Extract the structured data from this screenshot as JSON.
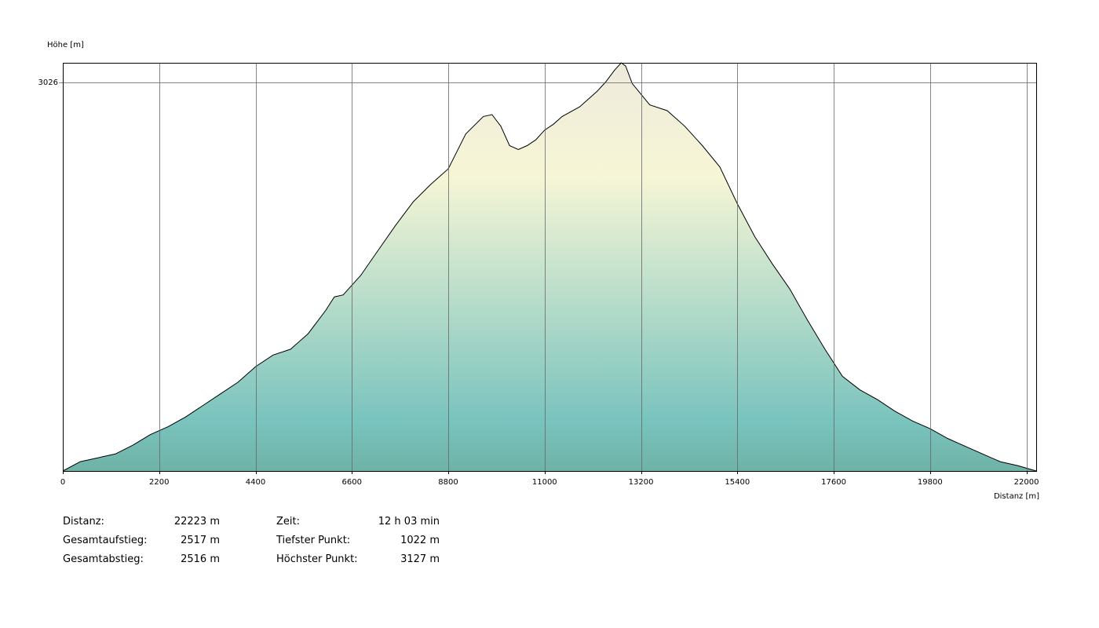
{
  "chart_data": {
    "type": "area",
    "ylabel": "Höhe [m]",
    "xlabel": "Distanz [m]",
    "xlim": [
      0,
      22223
    ],
    "ylim": [
      1022,
      3127
    ],
    "x_ticks": [
      0,
      2200,
      4400,
      6600,
      8800,
      11000,
      13200,
      15400,
      17600,
      19800,
      22000
    ],
    "x_tick_labels": [
      "0",
      "2200",
      "4400",
      "6600",
      "8800",
      "11000",
      "13200",
      "15400",
      "17600",
      "19800",
      "22000"
    ],
    "y_ticks": [
      3026
    ],
    "y_tick_labels": [
      "3026"
    ],
    "grid": true,
    "series": [
      {
        "x": [
          0,
          400,
          800,
          1200,
          1600,
          2000,
          2400,
          2800,
          3200,
          3600,
          4000,
          4400,
          4800,
          5200,
          5600,
          6000,
          6200,
          6400,
          6800,
          7200,
          7600,
          8000,
          8400,
          8800,
          9200,
          9600,
          9800,
          10000,
          10200,
          10400,
          10600,
          10800,
          11000,
          11200,
          11400,
          11800,
          12200,
          12400,
          12600,
          12750,
          12850,
          13000,
          13400,
          13800,
          14200,
          14600,
          15000,
          15400,
          15800,
          16200,
          16600,
          17000,
          17400,
          17800,
          18200,
          18600,
          19000,
          19400,
          19800,
          20200,
          20600,
          21000,
          21400,
          21800,
          22223
        ],
        "y": [
          1022,
          1070,
          1090,
          1110,
          1155,
          1210,
          1250,
          1300,
          1360,
          1420,
          1480,
          1560,
          1620,
          1650,
          1730,
          1850,
          1920,
          1930,
          2030,
          2160,
          2290,
          2410,
          2500,
          2580,
          2760,
          2850,
          2860,
          2800,
          2700,
          2680,
          2700,
          2730,
          2780,
          2810,
          2850,
          2900,
          2980,
          3030,
          3090,
          3127,
          3110,
          3020,
          2910,
          2880,
          2800,
          2700,
          2590,
          2400,
          2230,
          2090,
          1960,
          1800,
          1650,
          1510,
          1440,
          1390,
          1330,
          1280,
          1240,
          1190,
          1150,
          1110,
          1070,
          1050,
          1022
        ]
      }
    ]
  },
  "stats": {
    "distance": {
      "label": "Distanz:",
      "value": "22223 m"
    },
    "ascent": {
      "label": "Gesamtaufstieg:",
      "value": "2517 m"
    },
    "descent": {
      "label": "Gesamtabstieg:",
      "value": "2516 m"
    },
    "time": {
      "label": "Zeit:",
      "value": "12 h 03 min"
    },
    "lowest": {
      "label": "Tiefster Punkt:",
      "value": "1022 m"
    },
    "highest": {
      "label": "Höchster Punkt:",
      "value": "3127 m"
    }
  },
  "colors": {
    "top_fill": "#eeeadc",
    "mid_fill": "#f6f6d6",
    "low_fill": "#79c3be",
    "bottom_fill": "#6fb2a6",
    "outline": "#000000",
    "grid": "#666666"
  }
}
